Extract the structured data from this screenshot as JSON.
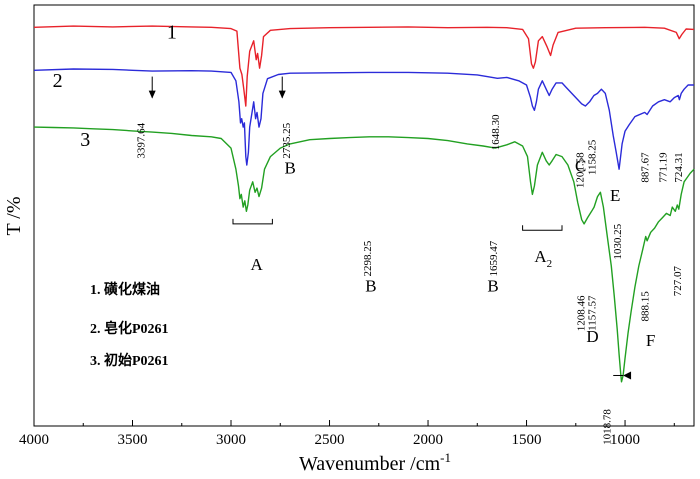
{
  "chart_data": {
    "type": "line",
    "xlabel": "Wavenumber /cm",
    "xlabel_sup": "-1",
    "ylabel": "T /%",
    "xlim": [
      4000,
      650
    ],
    "xticks": [
      4000,
      3500,
      3000,
      2500,
      2000,
      1500,
      1000
    ],
    "xtick_labels": [
      "4000",
      "3500",
      "3000",
      "2500",
      "2000",
      "1500",
      "1000"
    ],
    "x_reversed": true,
    "grid": false,
    "legend": {
      "placement": "bottom-left",
      "entries": [
        "1. 磺化煤油",
        "2. 皂化P0261",
        "3. 初始P0261"
      ]
    },
    "series": [
      {
        "label": "1",
        "color": "#e8222a",
        "points": [
          [
            4000,
            94.7
          ],
          [
            3800,
            95.0
          ],
          [
            3600,
            94.8
          ],
          [
            3400,
            95.0
          ],
          [
            3200,
            94.8
          ],
          [
            3100,
            94.7
          ],
          [
            3000,
            94.4
          ],
          [
            2970,
            93.8
          ],
          [
            2955,
            85.0
          ],
          [
            2945,
            83.5
          ],
          [
            2935,
            80.0
          ],
          [
            2925,
            76.0
          ],
          [
            2918,
            83.0
          ],
          [
            2905,
            89.0
          ],
          [
            2885,
            91.5
          ],
          [
            2872,
            87.0
          ],
          [
            2865,
            88.5
          ],
          [
            2855,
            85.0
          ],
          [
            2845,
            88.0
          ],
          [
            2835,
            92.5
          ],
          [
            2800,
            94.0
          ],
          [
            2700,
            94.4
          ],
          [
            2500,
            94.6
          ],
          [
            2300,
            94.7
          ],
          [
            2100,
            94.8
          ],
          [
            1900,
            94.6
          ],
          [
            1700,
            94.7
          ],
          [
            1600,
            94.6
          ],
          [
            1520,
            94.2
          ],
          [
            1490,
            92.0
          ],
          [
            1475,
            86.0
          ],
          [
            1465,
            85.0
          ],
          [
            1455,
            86.5
          ],
          [
            1440,
            91.5
          ],
          [
            1420,
            92.5
          ],
          [
            1395,
            90.0
          ],
          [
            1378,
            88.0
          ],
          [
            1365,
            90.5
          ],
          [
            1340,
            93.5
          ],
          [
            1250,
            94.5
          ],
          [
            1100,
            94.6
          ],
          [
            900,
            94.7
          ],
          [
            800,
            94.5
          ],
          [
            740,
            93.5
          ],
          [
            725,
            92.0
          ],
          [
            712,
            93.0
          ],
          [
            690,
            94.3
          ],
          [
            650,
            94.2
          ]
        ]
      },
      {
        "label": "2",
        "color": "#2b2bd9",
        "points": [
          [
            4000,
            84.5
          ],
          [
            3800,
            84.8
          ],
          [
            3600,
            84.7
          ],
          [
            3500,
            84.5
          ],
          [
            3400,
            84.3
          ],
          [
            3200,
            84.4
          ],
          [
            3100,
            84.3
          ],
          [
            3000,
            84.0
          ],
          [
            2975,
            82.0
          ],
          [
            2960,
            77.0
          ],
          [
            2952,
            72.0
          ],
          [
            2946,
            73.0
          ],
          [
            2938,
            71.0
          ],
          [
            2932,
            72.0
          ],
          [
            2925,
            64.0
          ],
          [
            2920,
            62.0
          ],
          [
            2912,
            65.0
          ],
          [
            2905,
            71.0
          ],
          [
            2895,
            74.0
          ],
          [
            2885,
            77.0
          ],
          [
            2875,
            73.0
          ],
          [
            2868,
            74.5
          ],
          [
            2858,
            71.0
          ],
          [
            2848,
            73.0
          ],
          [
            2838,
            79.0
          ],
          [
            2815,
            82.5
          ],
          [
            2760,
            83.5
          ],
          [
            2700,
            83.8
          ],
          [
            2500,
            83.9
          ],
          [
            2300,
            84.0
          ],
          [
            2100,
            84.0
          ],
          [
            1900,
            83.8
          ],
          [
            1750,
            83.4
          ],
          [
            1700,
            83.0
          ],
          [
            1648,
            82.6
          ],
          [
            1600,
            82.8
          ],
          [
            1540,
            82.0
          ],
          [
            1500,
            81.0
          ],
          [
            1480,
            78.0
          ],
          [
            1470,
            76.0
          ],
          [
            1460,
            75.0
          ],
          [
            1450,
            77.0
          ],
          [
            1440,
            80.0
          ],
          [
            1420,
            82.0
          ],
          [
            1400,
            80.0
          ],
          [
            1385,
            78.5
          ],
          [
            1370,
            80.0
          ],
          [
            1350,
            81.5
          ],
          [
            1320,
            81.5
          ],
          [
            1300,
            80.5
          ],
          [
            1260,
            78.5
          ],
          [
            1220,
            76.5
          ],
          [
            1201,
            76.0
          ],
          [
            1180,
            77.0
          ],
          [
            1158,
            78.5
          ],
          [
            1140,
            79.0
          ],
          [
            1120,
            80.0
          ],
          [
            1100,
            79.0
          ],
          [
            1080,
            75.0
          ],
          [
            1060,
            69.0
          ],
          [
            1045,
            65.0
          ],
          [
            1030,
            61.0
          ],
          [
            1015,
            67.0
          ],
          [
            1000,
            70.0
          ],
          [
            980,
            71.5
          ],
          [
            950,
            73.5
          ],
          [
            900,
            74.5
          ],
          [
            888,
            74.0
          ],
          [
            860,
            76.0
          ],
          [
            830,
            77.0
          ],
          [
            800,
            77.5
          ],
          [
            771,
            77.0
          ],
          [
            750,
            78.0
          ],
          [
            730,
            78.5
          ],
          [
            724,
            77.5
          ],
          [
            715,
            79.0
          ],
          [
            700,
            80.0
          ],
          [
            680,
            81.0
          ],
          [
            665,
            81.0
          ],
          [
            650,
            81.0
          ]
        ]
      },
      {
        "label": "3",
        "color": "#22a022",
        "points": [
          [
            4000,
            71.0
          ],
          [
            3900,
            70.9
          ],
          [
            3800,
            70.8
          ],
          [
            3700,
            70.6
          ],
          [
            3600,
            70.4
          ],
          [
            3500,
            70.1
          ],
          [
            3400,
            69.8
          ],
          [
            3300,
            69.5
          ],
          [
            3200,
            69.0
          ],
          [
            3100,
            68.7
          ],
          [
            3050,
            68.3
          ],
          [
            3000,
            66.0
          ],
          [
            2975,
            61.0
          ],
          [
            2962,
            57.0
          ],
          [
            2955,
            54.0
          ],
          [
            2948,
            55.0
          ],
          [
            2938,
            52.0
          ],
          [
            2930,
            53.5
          ],
          [
            2922,
            51.0
          ],
          [
            2915,
            52.5
          ],
          [
            2905,
            56.0
          ],
          [
            2890,
            58.0
          ],
          [
            2878,
            55.5
          ],
          [
            2868,
            56.5
          ],
          [
            2858,
            54.5
          ],
          [
            2845,
            56.5
          ],
          [
            2830,
            61.0
          ],
          [
            2800,
            64.0
          ],
          [
            2750,
            66.0
          ],
          [
            2700,
            67.0
          ],
          [
            2600,
            68.0
          ],
          [
            2500,
            68.3
          ],
          [
            2400,
            68.5
          ],
          [
            2298,
            68.7
          ],
          [
            2200,
            68.7
          ],
          [
            2100,
            68.5
          ],
          [
            2000,
            68.3
          ],
          [
            1900,
            67.8
          ],
          [
            1800,
            67.0
          ],
          [
            1720,
            66.5
          ],
          [
            1659,
            66.0
          ],
          [
            1600,
            66.8
          ],
          [
            1560,
            67.5
          ],
          [
            1520,
            66.5
          ],
          [
            1495,
            64.0
          ],
          [
            1480,
            58.0
          ],
          [
            1470,
            55.0
          ],
          [
            1460,
            57.0
          ],
          [
            1445,
            62.0
          ],
          [
            1420,
            65.0
          ],
          [
            1400,
            63.0
          ],
          [
            1385,
            62.0
          ],
          [
            1370,
            63.0
          ],
          [
            1350,
            64.5
          ],
          [
            1320,
            64.0
          ],
          [
            1290,
            62.0
          ],
          [
            1260,
            58.0
          ],
          [
            1240,
            53.0
          ],
          [
            1220,
            49.0
          ],
          [
            1208,
            48.0
          ],
          [
            1190,
            49.5
          ],
          [
            1170,
            51.0
          ],
          [
            1157,
            52.0
          ],
          [
            1140,
            54.5
          ],
          [
            1125,
            55.5
          ],
          [
            1110,
            52.0
          ],
          [
            1090,
            45.0
          ],
          [
            1070,
            38.0
          ],
          [
            1055,
            31.0
          ],
          [
            1040,
            23.0
          ],
          [
            1030,
            17.0
          ],
          [
            1022,
            12.5
          ],
          [
            1018,
            10.5
          ],
          [
            1010,
            12.0
          ],
          [
            1000,
            16.0
          ],
          [
            985,
            22.0
          ],
          [
            970,
            27.0
          ],
          [
            950,
            33.0
          ],
          [
            930,
            38.0
          ],
          [
            910,
            42.0
          ],
          [
            895,
            45.0
          ],
          [
            888,
            44.0
          ],
          [
            870,
            46.0
          ],
          [
            850,
            47.0
          ],
          [
            830,
            48.5
          ],
          [
            810,
            49.5
          ],
          [
            790,
            50.5
          ],
          [
            771,
            50.0
          ],
          [
            760,
            52.0
          ],
          [
            745,
            51.0
          ],
          [
            735,
            52.5
          ],
          [
            727,
            51.5
          ],
          [
            715,
            55.0
          ],
          [
            700,
            58.0
          ],
          [
            685,
            59.0
          ],
          [
            670,
            60.0
          ],
          [
            650,
            61.0
          ]
        ]
      }
    ],
    "series_labels": [
      {
        "text": "1",
        "x": 3300,
        "y": 92.0
      },
      {
        "text": "2",
        "x": 3880,
        "y": 80.5
      },
      {
        "text": "3",
        "x": 3740,
        "y": 66.5
      }
    ],
    "annotations": [
      {
        "text": "3397.64",
        "x": 3440,
        "y": 72.0,
        "rotate": -90
      },
      {
        "text": "2735.25",
        "x": 2700,
        "y": 72.0,
        "rotate": -90
      },
      {
        "text": "1648.30",
        "x": 1640,
        "y": 74.0,
        "rotate": -90
      },
      {
        "text": "1201.58",
        "x": 1210,
        "y": 65.0,
        "rotate": -90
      },
      {
        "text": "1158.25",
        "x": 1150,
        "y": 68.0,
        "rotate": -90
      },
      {
        "text": "887.67",
        "x": 880,
        "y": 65.0,
        "rotate": -90
      },
      {
        "text": "771.19",
        "x": 790,
        "y": 65.0,
        "rotate": -90
      },
      {
        "text": "724.31",
        "x": 712,
        "y": 65.0,
        "rotate": -90
      },
      {
        "text": "1030.25",
        "x": 1020,
        "y": 48.0,
        "rotate": -90
      },
      {
        "text": "2298.25",
        "x": 2290,
        "y": 44.0,
        "rotate": -90
      },
      {
        "text": "1659.47",
        "x": 1650,
        "y": 44.0,
        "rotate": -90
      },
      {
        "text": "1208.46",
        "x": 1205,
        "y": 31.0,
        "rotate": -90
      },
      {
        "text": "1157.57",
        "x": 1150,
        "y": 31.0,
        "rotate": -90
      },
      {
        "text": "888.15",
        "x": 880,
        "y": 32.0,
        "rotate": -90
      },
      {
        "text": "727.07",
        "x": 715,
        "y": 38.0,
        "rotate": -90
      },
      {
        "text": "1018.78",
        "x": 1075,
        "y": 4.0,
        "rotate": -90
      }
    ],
    "band_letters": [
      {
        "text": "B",
        "x": 2700,
        "y": 60.0
      },
      {
        "text": "C",
        "x": 1225,
        "y": 60.5
      },
      {
        "text": "E",
        "x": 1050,
        "y": 53.5
      },
      {
        "text": "A",
        "x": 2870,
        "y": 37.0
      },
      {
        "text": "B",
        "x": 2290,
        "y": 32.0
      },
      {
        "text": "B",
        "x": 1670,
        "y": 32.0
      },
      {
        "text": "A",
        "x": 1415,
        "y": 39.0,
        "sub": "2"
      },
      {
        "text": "D",
        "x": 1165,
        "y": 20.0
      },
      {
        "text": "F",
        "x": 870,
        "y": 19.0
      }
    ],
    "brackets": [
      {
        "x1": 2990,
        "x2": 2790,
        "y": 48.0
      },
      {
        "x1": 1520,
        "x2": 1320,
        "y": 46.5
      }
    ],
    "arrows": [
      {
        "x": 3400,
        "y1": 83.0,
        "y2": 78.0
      },
      {
        "x": 2740,
        "y1": 83.0,
        "y2": 78.0
      },
      {
        "x1": 1010,
        "y1": 12.0,
        "x2": 1060,
        "y2": 12.0,
        "horizontal": true
      }
    ]
  }
}
